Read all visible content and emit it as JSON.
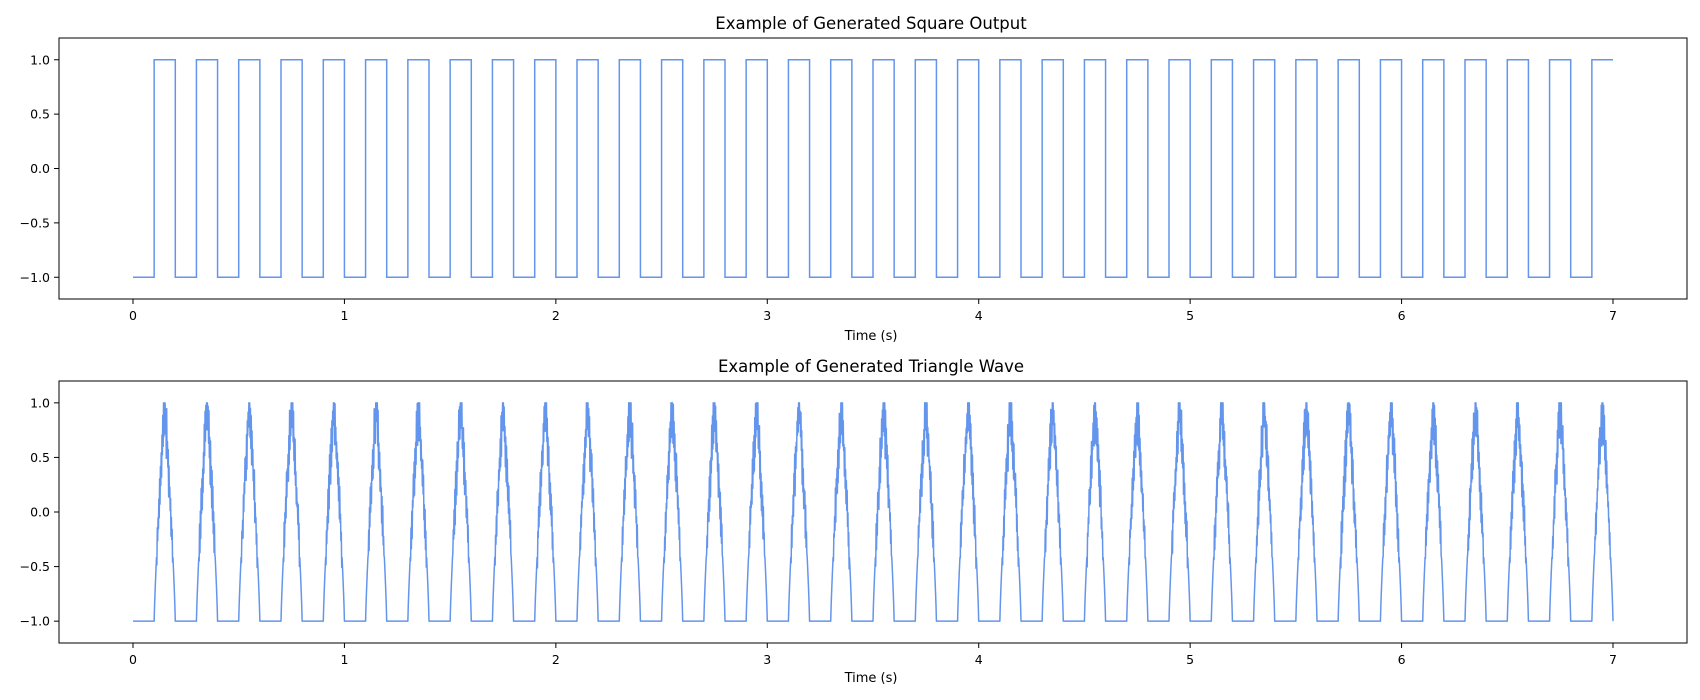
{
  "chart_data": [
    {
      "type": "line",
      "title": "Example of Generated Square Output",
      "xlabel": "Time (s)",
      "ylabel": "",
      "xlim": [
        -0.35,
        7.35
      ],
      "ylim": [
        -1.2,
        1.2
      ],
      "xticks": [
        0,
        1,
        2,
        3,
        4,
        5,
        6,
        7
      ],
      "xtick_labels": [
        "0",
        "1",
        "2",
        "3",
        "4",
        "5",
        "6",
        "7"
      ],
      "yticks": [
        -1.0,
        -0.5,
        0.0,
        0.5,
        1.0
      ],
      "ytick_labels": [
        "−1.0",
        "−0.5",
        "0.0",
        "0.5",
        "1.0"
      ],
      "grid": false,
      "color": "#6495ed",
      "series": [
        {
          "waveform": "square",
          "x_start": 0,
          "x_end": 7,
          "first_rise": 0.1,
          "high_duration": 0.1,
          "period": 0.2,
          "low": -1.0,
          "high": 1.0,
          "cycles": 35
        }
      ]
    },
    {
      "type": "line",
      "title": "Example of Generated Triangle Wave",
      "xlabel": "Time (s)",
      "ylabel": "",
      "xlim": [
        -0.35,
        7.35
      ],
      "ylim": [
        -1.2,
        1.2
      ],
      "xticks": [
        0,
        1,
        2,
        3,
        4,
        5,
        6,
        7
      ],
      "xtick_labels": [
        "0",
        "1",
        "2",
        "3",
        "4",
        "5",
        "6",
        "7"
      ],
      "yticks": [
        -1.0,
        -0.5,
        0.0,
        0.5,
        1.0
      ],
      "ytick_labels": [
        "−1.0",
        "−0.5",
        "0.0",
        "0.5",
        "1.0"
      ],
      "grid": false,
      "color": "#6495ed",
      "series": [
        {
          "waveform": "noisy-triangle",
          "x_start": 0,
          "x_end": 7,
          "first_pulse_start": 0.1,
          "pulse_width": 0.1,
          "period": 0.2,
          "low": -1.0,
          "high": 1.0,
          "cycles": 35
        }
      ]
    }
  ]
}
